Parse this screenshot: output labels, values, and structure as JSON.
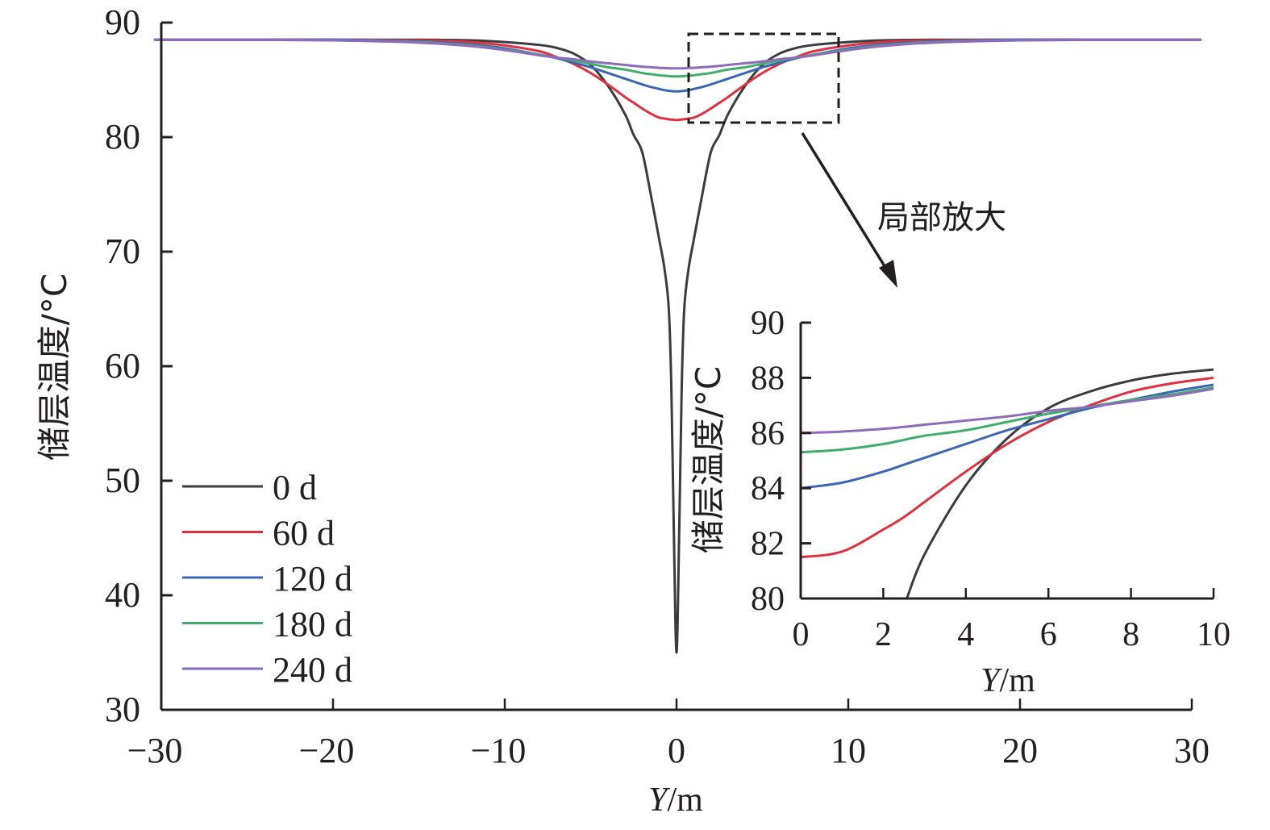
{
  "chart_data": [
    {
      "type": "line",
      "name": "main",
      "xlabel_italic": "Y",
      "xlabel_unit": "/m",
      "ylabel": "储层温度/°C",
      "xlim": [
        -30,
        30
      ],
      "ylim": [
        30,
        90
      ],
      "xticks": [
        -30,
        -20,
        -10,
        0,
        10,
        20,
        30
      ],
      "xtick_labels": [
        "−30",
        "−20",
        "−10",
        "0",
        "10",
        "20",
        "30"
      ],
      "yticks": [
        30,
        40,
        50,
        60,
        70,
        80,
        90
      ],
      "ytick_labels": [
        "30",
        "40",
        "50",
        "60",
        "70",
        "80",
        "90"
      ],
      "grid": false,
      "legend_position": "bottom-left",
      "symmetric_about_zero": true,
      "x_half": [
        0,
        0.15,
        0.3,
        0.45,
        0.7,
        1,
        1.5,
        2,
        2.5,
        3,
        4,
        5,
        6,
        7,
        8,
        10,
        12,
        15,
        20,
        25,
        30
      ],
      "series": [
        {
          "name": "0 d",
          "color": "#3b3b40",
          "values": [
            35,
            45,
            58,
            65,
            68.5,
            71,
            75,
            78.7,
            80.2,
            82,
            84.5,
            86.3,
            87.3,
            87.8,
            88.05,
            88.3,
            88.45,
            88.5,
            88.5,
            88.5,
            88.5
          ]
        },
        {
          "name": "60 d",
          "color": "#e0303f",
          "values": [
            81.5,
            81.51,
            81.53,
            81.56,
            81.62,
            81.7,
            82.05,
            82.5,
            83.0,
            83.5,
            84.6,
            85.6,
            86.4,
            87.0,
            87.5,
            88.0,
            88.3,
            88.45,
            88.5,
            88.5,
            88.5
          ]
        },
        {
          "name": "120 d",
          "color": "#3a66b3",
          "values": [
            84.0,
            84.0,
            84.02,
            84.05,
            84.1,
            84.2,
            84.38,
            84.6,
            84.85,
            85.1,
            85.6,
            86.1,
            86.5,
            86.9,
            87.2,
            87.75,
            88.1,
            88.35,
            88.5,
            88.5,
            88.5
          ]
        },
        {
          "name": "180 d",
          "color": "#3fae6a",
          "values": [
            85.3,
            85.3,
            85.31,
            85.33,
            85.36,
            85.4,
            85.5,
            85.6,
            85.75,
            85.9,
            86.1,
            86.4,
            86.7,
            86.95,
            87.2,
            87.65,
            88.0,
            88.3,
            88.45,
            88.5,
            88.5
          ]
        },
        {
          "name": "240 d",
          "color": "#8e6bbd",
          "values": [
            86.0,
            86.0,
            86.0,
            86.01,
            86.03,
            86.05,
            86.1,
            86.15,
            86.22,
            86.3,
            86.45,
            86.6,
            86.8,
            86.95,
            87.15,
            87.6,
            87.95,
            88.25,
            88.45,
            88.5,
            88.5
          ]
        }
      ],
      "annotation": "局部放大"
    },
    {
      "type": "line",
      "name": "inset",
      "xlabel_italic": "Y",
      "xlabel_unit": "/m",
      "ylabel": "储层温度/°C",
      "xlim": [
        0,
        10
      ],
      "ylim": [
        80,
        90
      ],
      "xticks": [
        0,
        2,
        4,
        6,
        8,
        10
      ],
      "xtick_labels": [
        "0",
        "2",
        "4",
        "6",
        "8",
        "10"
      ],
      "yticks": [
        80,
        82,
        84,
        86,
        88,
        90
      ],
      "ytick_labels": [
        "80",
        "82",
        "84",
        "86",
        "88",
        "90"
      ],
      "grid": false,
      "x": [
        0,
        1,
        2,
        2.5,
        3,
        4,
        5,
        6,
        7,
        8,
        9,
        10
      ],
      "series": [
        {
          "name": "0 d",
          "color": "#3b3b40",
          "values": [
            null,
            null,
            null,
            79.9,
            81.6,
            84.1,
            85.8,
            86.9,
            87.5,
            87.9,
            88.15,
            88.3
          ]
        },
        {
          "name": "60 d",
          "color": "#e0303f",
          "values": [
            81.5,
            81.7,
            82.5,
            82.95,
            83.5,
            84.6,
            85.6,
            86.4,
            87.0,
            87.5,
            87.8,
            88.0
          ]
        },
        {
          "name": "120 d",
          "color": "#3a66b3",
          "values": [
            84.0,
            84.2,
            84.6,
            84.85,
            85.1,
            85.6,
            86.1,
            86.5,
            86.9,
            87.2,
            87.5,
            87.75
          ]
        },
        {
          "name": "180 d",
          "color": "#3fae6a",
          "values": [
            85.3,
            85.4,
            85.6,
            85.75,
            85.9,
            86.1,
            86.4,
            86.7,
            86.95,
            87.2,
            87.4,
            87.65
          ]
        },
        {
          "name": "240 d",
          "color": "#8e6bbd",
          "values": [
            86.0,
            86.05,
            86.15,
            86.22,
            86.3,
            86.45,
            86.6,
            86.8,
            86.95,
            87.15,
            87.35,
            87.6
          ]
        }
      ]
    }
  ]
}
